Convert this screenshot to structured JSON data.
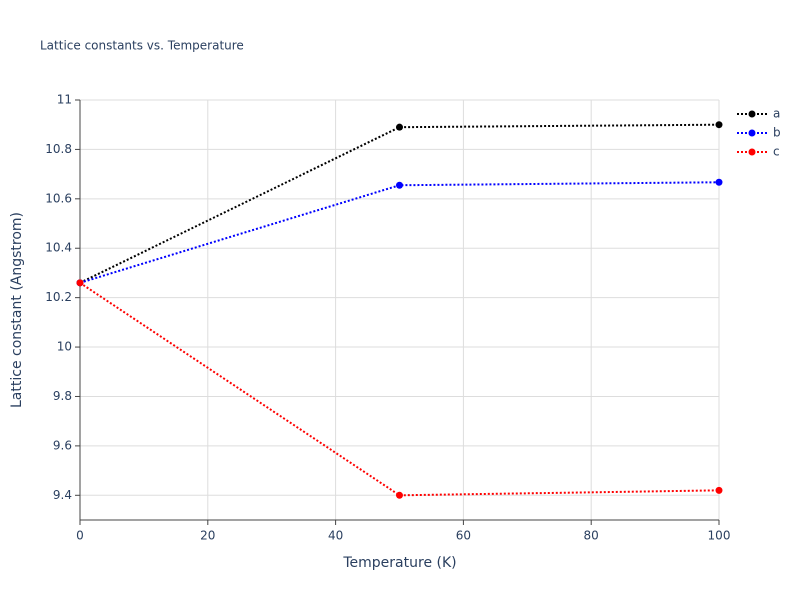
{
  "chart_data": {
    "type": "line",
    "title": "Lattice constants vs. Temperature",
    "x_label": "Temperature (K)",
    "y_label": "Lattice constant (Angstrom)",
    "x": [
      0,
      50,
      100
    ],
    "series": [
      {
        "name": "a",
        "color": "#000000",
        "values": [
          10.26,
          10.89,
          10.9
        ]
      },
      {
        "name": "b",
        "color": "#0000ff",
        "values": [
          10.26,
          10.655,
          10.667
        ]
      },
      {
        "name": "c",
        "color": "#ff0000",
        "values": [
          10.26,
          9.4,
          9.42
        ]
      }
    ],
    "xlim": [
      0,
      100
    ],
    "xticks": [
      0,
      20,
      40,
      60,
      80,
      100
    ],
    "ylim": [
      9.3,
      11
    ],
    "yticks": [
      9.4,
      9.6,
      9.8,
      10,
      10.2,
      10.4,
      10.6,
      10.8,
      11
    ],
    "grid": true,
    "legend": "top-right"
  }
}
